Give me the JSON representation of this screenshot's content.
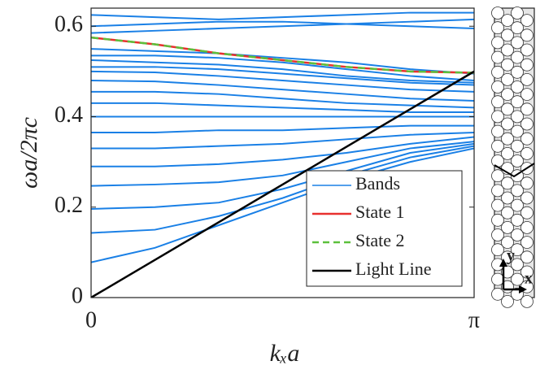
{
  "chart_data": {
    "type": "line",
    "x_label": "kₓa",
    "y_label": "ωa/2πc",
    "x": [
      0,
      0.5236,
      1.0472,
      1.5708,
      2.0944,
      2.618,
      3.1416
    ],
    "xlim": [
      0,
      3.1416
    ],
    "ylim": [
      0,
      0.64
    ],
    "xticks": [
      0,
      {
        "value": 3.1416,
        "label": "π"
      }
    ],
    "yticks": [
      0,
      0.2,
      0.4,
      0.6
    ],
    "grid": false,
    "legend": "lower right",
    "bands": {
      "name": "Bands",
      "color": "#1a80e6",
      "lines": [
        [
          0.078,
          0.11,
          0.16,
          0.21,
          0.26,
          0.3,
          0.33
        ],
        [
          0.143,
          0.15,
          0.18,
          0.22,
          0.27,
          0.31,
          0.335
        ],
        [
          0.196,
          0.2,
          0.21,
          0.24,
          0.28,
          0.32,
          0.34
        ],
        [
          0.247,
          0.25,
          0.255,
          0.27,
          0.3,
          0.33,
          0.345
        ],
        [
          0.29,
          0.29,
          0.295,
          0.305,
          0.32,
          0.34,
          0.355
        ],
        [
          0.33,
          0.33,
          0.335,
          0.34,
          0.35,
          0.36,
          0.365
        ],
        [
          0.365,
          0.365,
          0.37,
          0.37,
          0.375,
          0.38,
          0.38
        ],
        [
          0.4,
          0.4,
          0.4,
          0.4,
          0.4,
          0.4,
          0.4
        ],
        [
          0.43,
          0.43,
          0.425,
          0.42,
          0.415,
          0.41,
          0.41
        ],
        [
          0.455,
          0.455,
          0.45,
          0.44,
          0.43,
          0.425,
          0.42
        ],
        [
          0.48,
          0.478,
          0.47,
          0.46,
          0.45,
          0.44,
          0.435
        ],
        [
          0.5,
          0.498,
          0.49,
          0.48,
          0.47,
          0.46,
          0.455
        ],
        [
          0.51,
          0.51,
          0.505,
          0.495,
          0.485,
          0.475,
          0.47
        ],
        [
          0.525,
          0.52,
          0.515,
          0.505,
          0.49,
          0.48,
          0.475
        ],
        [
          0.535,
          0.535,
          0.53,
          0.52,
          0.505,
          0.49,
          0.48
        ],
        [
          0.55,
          0.545,
          0.54,
          0.53,
          0.52,
          0.505,
          0.495
        ],
        [
          0.585,
          0.59,
          0.595,
          0.6,
          0.605,
          0.61,
          0.615
        ],
        [
          0.6,
          0.605,
          0.61,
          0.61,
          0.605,
          0.6,
          0.595
        ],
        [
          0.625,
          0.62,
          0.615,
          0.62,
          0.625,
          0.63,
          0.63
        ]
      ]
    },
    "series": [
      {
        "name": "State 1",
        "color": "#e8302e",
        "dashed": false,
        "values": [
          0.575,
          0.56,
          0.54,
          0.525,
          0.51,
          0.5,
          0.497
        ]
      },
      {
        "name": "State 2",
        "color": "#5cc03c",
        "dashed": true,
        "values": [
          0.575,
          0.56,
          0.54,
          0.525,
          0.51,
          0.5,
          0.497
        ]
      },
      {
        "name": "Light Line",
        "color": "#000000",
        "dashed": false,
        "values": [
          0,
          0.0833,
          0.1667,
          0.25,
          0.3333,
          0.4167,
          0.5
        ]
      }
    ],
    "inset": {
      "x_label": "x",
      "y_label": "y"
    }
  }
}
